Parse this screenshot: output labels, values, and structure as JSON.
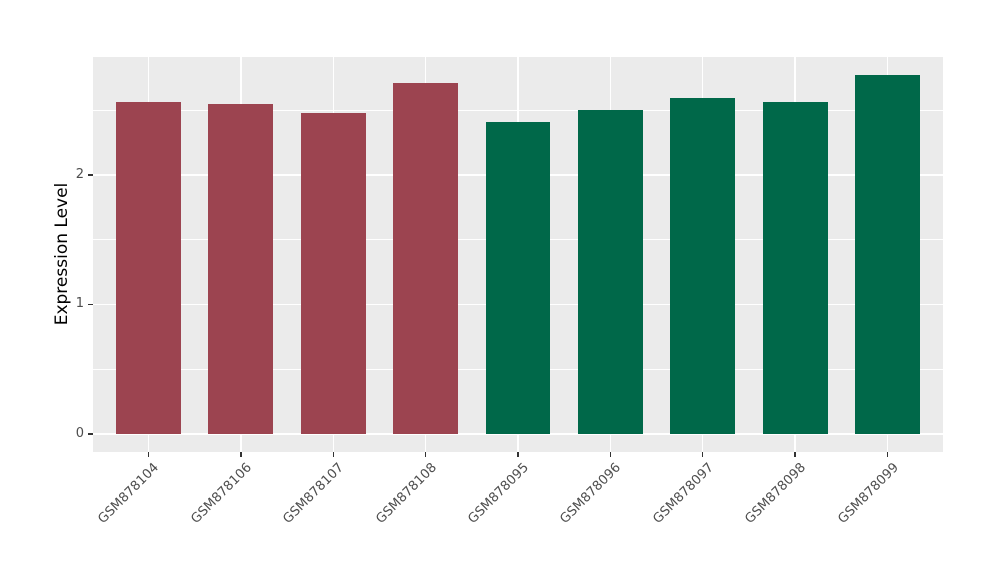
{
  "chart_data": {
    "type": "bar",
    "title": "",
    "xlabel": "",
    "ylabel": "Expression Level",
    "categories": [
      "GSM878104",
      "GSM878106",
      "GSM878107",
      "GSM878108",
      "GSM878095",
      "GSM878096",
      "GSM878097",
      "GSM878098",
      "GSM878099"
    ],
    "values": [
      2.56,
      2.55,
      2.48,
      2.71,
      2.41,
      2.5,
      2.59,
      2.56,
      2.77
    ],
    "bar_colors": [
      "#9C4450",
      "#9C4450",
      "#9C4450",
      "#9C4450",
      "#006849",
      "#006849",
      "#006849",
      "#006849",
      "#006849"
    ],
    "group_colors": {
      "red_group": "#9C4450",
      "green_group": "#006849"
    },
    "ylim": [
      -0.14,
      2.91
    ],
    "yticks": [
      "0",
      "1",
      "2"
    ],
    "ytick_values": [
      0,
      1,
      2
    ],
    "yminor_values": [
      0.5,
      1.5,
      2.5
    ],
    "bar_width_fraction": 0.7,
    "grid": true,
    "legend": false,
    "panel_bg": "#EBEBEB",
    "grid_color": "#FFFFFF",
    "axis_text_color": "#4D4D4D",
    "tick_mark_color": "#333333"
  }
}
